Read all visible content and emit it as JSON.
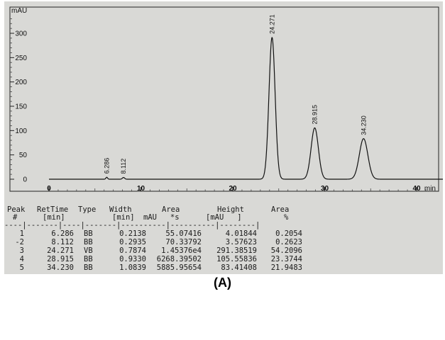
{
  "chart_data": {
    "type": "line",
    "ylabel": "mAU",
    "xlabel": "min",
    "xlim": [
      0,
      43.5
    ],
    "ylim": [
      -12,
      345
    ],
    "x_ticks": [
      0,
      10,
      20,
      30,
      40
    ],
    "y_ticks": [
      0,
      50,
      100,
      150,
      200,
      250,
      300
    ],
    "grid": false,
    "peaks": [
      {
        "rt": 6.286,
        "label": "6.286",
        "height": 4.01844,
        "width": 0.2138
      },
      {
        "rt": 8.112,
        "label": "8.112",
        "height": 3.57623,
        "width": 0.2935
      },
      {
        "rt": 24.271,
        "label": "24.271",
        "height": 291.38519,
        "width": 0.7874
      },
      {
        "rt": 28.915,
        "label": "28.915",
        "height": 105.55836,
        "width": 0.933
      },
      {
        "rt": 34.23,
        "label": "34.230",
        "height": 83.41408,
        "width": 1.0839
      }
    ]
  },
  "report": {
    "headers_line1": [
      "Peak",
      "RetTime",
      "Type",
      "Width",
      "Area",
      "Height",
      "Area"
    ],
    "headers_line2": [
      "#",
      "[min]",
      "",
      "[min]",
      "mAU   *s",
      "[mAU   ]",
      "%"
    ],
    "separator": "----|-------|----|-------|----------|----------|--------|",
    "rows": [
      [
        "1",
        "6.286",
        "BB",
        "0.2138",
        "55.07416",
        "4.01844",
        "0.2054"
      ],
      [
        "-2",
        "8.112",
        "BB",
        "0.2935",
        "70.33792",
        "3.57623",
        "0.2623"
      ],
      [
        "3",
        "24.271",
        "VB",
        "0.7874",
        "1.45376e4",
        "291.38519",
        "54.2096"
      ],
      [
        "4",
        "28.915",
        "BB",
        "0.9330",
        "6268.39502",
        "105.55836",
        "23.3744"
      ],
      [
        "5",
        "34.230",
        "BB",
        "1.0839",
        "5885.95654",
        "83.41408",
        "21.9483"
      ]
    ]
  },
  "caption": "(A)"
}
